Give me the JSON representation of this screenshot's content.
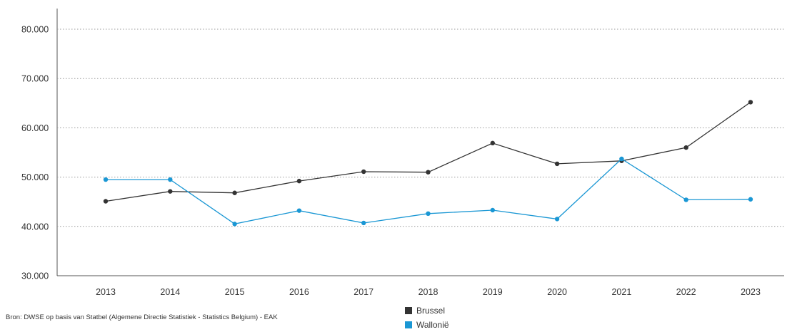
{
  "chart_data": {
    "type": "line",
    "title": "",
    "xlabel": "",
    "ylabel": "",
    "categories": [
      "2013",
      "2014",
      "2015",
      "2016",
      "2017",
      "2018",
      "2019",
      "2020",
      "2021",
      "2022",
      "2023"
    ],
    "ylim": [
      30000,
      80000
    ],
    "y_ticks": [
      30000,
      40000,
      50000,
      60000,
      70000,
      80000
    ],
    "y_tick_labels": [
      "30.000",
      "40.000",
      "50.000",
      "60.000",
      "70.000",
      "80.000"
    ],
    "grid": "horizontal-dotted",
    "legend_position": "bottom-center",
    "series": [
      {
        "name": "Brussel",
        "color": "#333333",
        "values": [
          45100,
          47100,
          46800,
          49200,
          51100,
          51000,
          56900,
          52700,
          53300,
          56000,
          65200
        ]
      },
      {
        "name": "Wallonië",
        "color": "#1a97d4",
        "values": [
          49500,
          49500,
          40500,
          43200,
          40700,
          42600,
          43300,
          41500,
          53700,
          45400,
          45500
        ]
      }
    ],
    "source": "Bron: DWSE op basis van Statbel (Algemene Directie Statistiek - Statistics Belgium) - EAK"
  }
}
